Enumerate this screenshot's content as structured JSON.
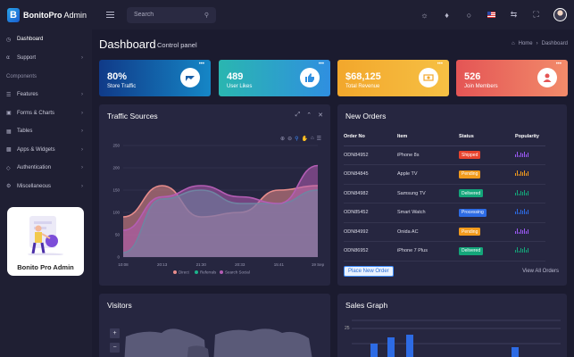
{
  "brand": {
    "name_bold": "BonitoPro",
    "name_light": " Admin",
    "logo_letter": "B"
  },
  "search": {
    "placeholder": "Search"
  },
  "sidebar": {
    "items_top": [
      {
        "label": "Dashboard",
        "icon": "gauge-icon"
      },
      {
        "label": "Support",
        "icon": "headset-icon"
      }
    ],
    "section": "Components",
    "items": [
      {
        "label": "Features",
        "icon": "layers-icon"
      },
      {
        "label": "Forms & Charts",
        "icon": "chart-icon"
      },
      {
        "label": "Tables",
        "icon": "table-icon"
      },
      {
        "label": "Apps & Widgets",
        "icon": "apps-icon"
      },
      {
        "label": "Authentication",
        "icon": "lock-icon"
      },
      {
        "label": "Miscellaneous",
        "icon": "settings-icon"
      }
    ],
    "promo": "Bonito Pro Admin"
  },
  "page": {
    "title": "Dashboard",
    "subtitle": "Control panel",
    "breadcrumb_home": "Home",
    "breadcrumb_current": "Dashboard"
  },
  "stats": [
    {
      "value": "80%",
      "label": "Store Traffic",
      "icon": "pie-chart-icon"
    },
    {
      "value": "489",
      "label": "User Likes",
      "icon": "thumbs-up-icon"
    },
    {
      "value": "$68,125",
      "label": "Total Revenue",
      "icon": "money-icon"
    },
    {
      "value": "526",
      "label": "Join Members",
      "icon": "user-icon"
    }
  ],
  "traffic": {
    "title": "Traffic Sources"
  },
  "chart_data": {
    "type": "area",
    "x": [
      "10:08",
      "20:13",
      "21:30",
      "20:33",
      "15:41",
      "19 Sep"
    ],
    "y_ticks": [
      0,
      50,
      100,
      150,
      200,
      250
    ],
    "ylim": [
      0,
      250
    ],
    "legend": [
      "Direct",
      "Referrals",
      "Search Social"
    ],
    "series": [
      {
        "name": "Direct",
        "color": "#e98d8c",
        "values": [
          90,
          160,
          90,
          100,
          150,
          160
        ]
      },
      {
        "name": "Referrals",
        "color": "#1cb48b",
        "values": [
          10,
          130,
          150,
          120,
          120,
          150
        ]
      },
      {
        "name": "Search Social",
        "color": "#b45db4",
        "values": [
          60,
          135,
          160,
          135,
          120,
          205
        ]
      }
    ]
  },
  "orders": {
    "title": "New Orders",
    "headers": [
      "Order No",
      "Item",
      "Status",
      "Popularity"
    ],
    "rows": [
      {
        "no": "ODN84952",
        "item": "iPhone 8s",
        "status": "Shipped",
        "color": "#e8442e"
      },
      {
        "no": "ODN84845",
        "item": "Apple TV",
        "status": "Pending",
        "color": "#f29b1d"
      },
      {
        "no": "ODN84982",
        "item": "Samsung TV",
        "status": "Delivered",
        "color": "#14a67a"
      },
      {
        "no": "ODN85452",
        "item": "Smart Watch",
        "status": "Processing",
        "color": "#2d6be4"
      },
      {
        "no": "ODN84992",
        "item": "Onida AC",
        "status": "Pending",
        "color": "#f29b1d"
      },
      {
        "no": "ODN86952",
        "item": "iPhone 7 Plus",
        "status": "Delivered",
        "color": "#14a67a"
      }
    ],
    "place_btn": "Place New Order",
    "view_all": "View All Orders"
  },
  "visitors": {
    "title": "Visitors",
    "zoom_in": "+",
    "zoom_out": "−"
  },
  "sales": {
    "title": "Sales Graph",
    "y_label": "25"
  }
}
